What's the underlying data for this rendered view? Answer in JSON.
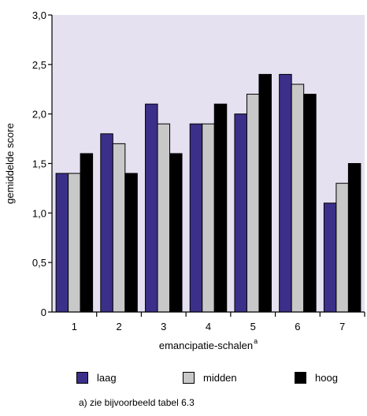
{
  "chart_data": {
    "type": "bar",
    "categories": [
      "1",
      "2",
      "3",
      "4",
      "5",
      "6",
      "7"
    ],
    "series": [
      {
        "name": "laag",
        "values": [
          1.4,
          1.8,
          2.1,
          1.9,
          2.0,
          2.4,
          1.1
        ]
      },
      {
        "name": "midden",
        "values": [
          1.4,
          1.7,
          1.9,
          1.9,
          2.2,
          2.3,
          1.3
        ]
      },
      {
        "name": "hoog",
        "values": [
          1.6,
          1.4,
          1.6,
          2.1,
          2.4,
          2.2,
          1.5
        ]
      }
    ],
    "colors": [
      "#3b2f8a",
      "#c8c8c8",
      "#000000"
    ],
    "plot_background": "#e6e1f0",
    "xlabel": "emancipatie-schalen",
    "xlabel_superscript": "a",
    "ylabel": "gemiddelde score",
    "ylim": [
      0,
      3
    ],
    "yticks": [
      "0",
      "0,5",
      "1,0",
      "1,5",
      "2,0",
      "2,5",
      "3,0"
    ],
    "ytick_values": [
      0,
      0.5,
      1.0,
      1.5,
      2.0,
      2.5,
      3.0
    ],
    "grid": false,
    "legend_position": "bottom"
  },
  "footnote": "a) zie bijvoorbeeld tabel 6.3"
}
